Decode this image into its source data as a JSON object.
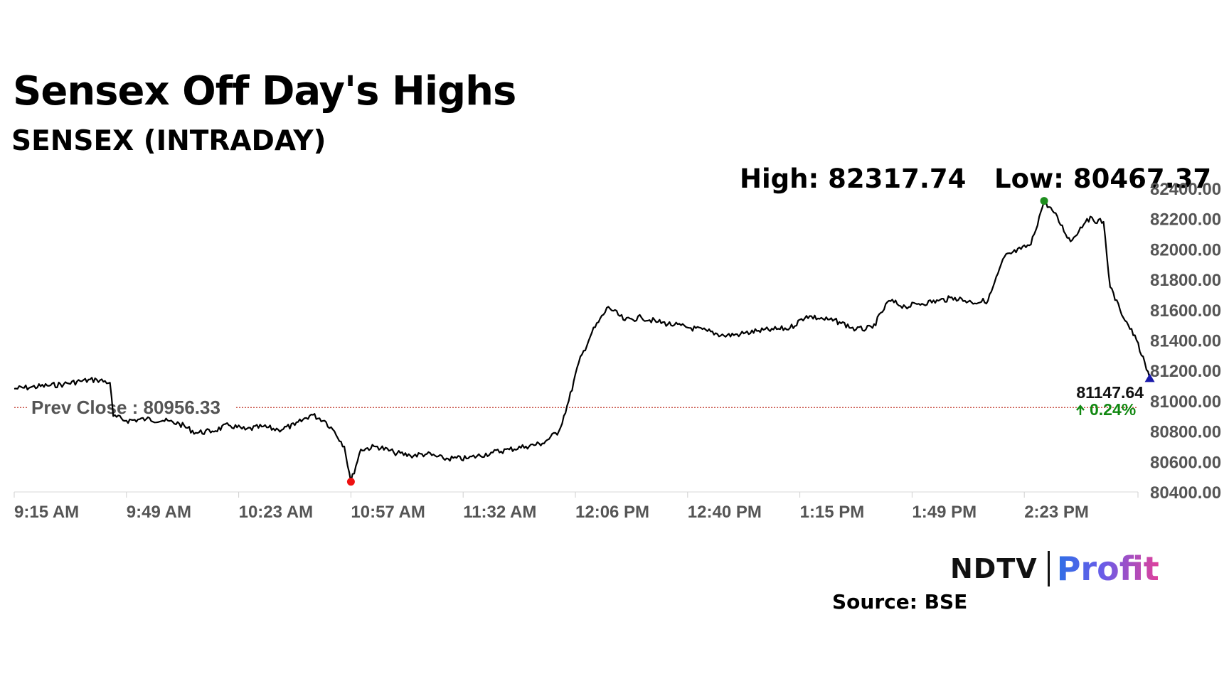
{
  "header": {
    "title": "Sensex Off Day's Highs",
    "subtitle": "SENSEX (INTRADAY)",
    "high_label": "High: 82317.74",
    "low_label": "Low: 80467.37"
  },
  "footer": {
    "brand_left": "NDTV",
    "brand_right": "Profit",
    "source": "Source: BSE"
  },
  "colors": {
    "line": "#000000",
    "prev_close_line": "#c0392b",
    "high_marker": "#1e8e1e",
    "low_marker": "#ee1111",
    "last_marker": "#1a1aaa",
    "change_positive": "#118811"
  },
  "chart_data": {
    "type": "line",
    "title": "SENSEX (INTRADAY)",
    "xlabel": "",
    "ylabel": "",
    "x_ticks": [
      "9:15 AM",
      "9:49 AM",
      "10:23 AM",
      "10:57 AM",
      "11:32 AM",
      "12:06 PM",
      "12:40 PM",
      "1:15 PM",
      "1:49 PM",
      "2:23 PM"
    ],
    "y_ticks": [
      "82400.00",
      "82200.00",
      "82000.00",
      "81800.00",
      "81600.00",
      "81400.00",
      "81200.00",
      "81000.00",
      "80800.00",
      "80600.00",
      "80400.00"
    ],
    "ylim": [
      80400,
      82400
    ],
    "grid": false,
    "prev_close": {
      "label": "Prev Close : 80956.33",
      "value": 80956.33
    },
    "high": {
      "value": 82317.74,
      "time": "2:27 PM"
    },
    "low": {
      "value": 80467.37,
      "time": "10:57 AM"
    },
    "last": {
      "value_label": "81147.64",
      "change_label": "0.24%",
      "value": 81147.64
    },
    "series": [
      {
        "x": [
          "9:15 AM",
          "9:20 AM",
          "9:25 AM",
          "9:30 AM",
          "9:35 AM",
          "9:40 AM",
          "9:44 AM",
          "9:45 AM",
          "9:49 AM",
          "9:55 AM",
          "10:00 AM",
          "10:05 AM",
          "10:10 AM",
          "10:15 AM",
          "10:20 AM",
          "10:25 AM",
          "10:30 AM",
          "10:35 AM",
          "10:40 AM",
          "10:45 AM",
          "10:49 AM",
          "10:52 AM",
          "10:55 AM",
          "10:57 AM",
          "11:00 AM",
          "11:05 AM",
          "11:10 AM",
          "11:15 AM",
          "11:20 AM",
          "11:25 AM",
          "11:32 AM",
          "11:40 AM",
          "11:45 AM",
          "11:50 AM",
          "11:55 AM",
          "12:00 PM",
          "12:03 PM",
          "12:06 PM",
          "12:10 PM",
          "12:15 PM",
          "12:20 PM",
          "12:25 PM",
          "12:30 PM",
          "12:35 PM",
          "12:40 PM",
          "12:45 PM",
          "12:50 PM",
          "12:55 PM",
          "1:00 PM",
          "1:05 PM",
          "1:10 PM",
          "1:15 PM",
          "1:20 PM",
          "1:25 PM",
          "1:30 PM",
          "1:35 PM",
          "1:40 PM",
          "1:45 PM",
          "1:49 PM",
          "1:55 PM",
          "2:00 PM",
          "2:05 PM",
          "2:10 PM",
          "2:15 PM",
          "2:20 PM",
          "2:23 PM",
          "2:27 PM",
          "2:30 PM",
          "2:35 PM",
          "2:40 PM",
          "2:45 PM",
          "2:47 PM",
          "2:50 PM",
          "2:55 PM",
          "2:59 PM"
        ],
        "values": [
          81080,
          81090,
          81100,
          81110,
          81130,
          81140,
          81120,
          80900,
          80870,
          80880,
          80870,
          80850,
          80790,
          80800,
          80840,
          80810,
          80830,
          80810,
          80840,
          80910,
          80870,
          80800,
          80700,
          80467,
          80680,
          80700,
          80660,
          80640,
          80650,
          80620,
          80620,
          80660,
          80680,
          80700,
          80720,
          80800,
          81000,
          81250,
          81450,
          81620,
          81530,
          81550,
          81520,
          81500,
          81480,
          81460,
          81430,
          81440,
          81460,
          81470,
          81480,
          81560,
          81540,
          81520,
          81470,
          81480,
          81660,
          81620,
          81640,
          81660,
          81680,
          81650,
          81660,
          81950,
          82000,
          82030,
          82317,
          82240,
          82050,
          82200,
          82180,
          81750,
          81600,
          81400,
          81147
        ]
      }
    ]
  }
}
